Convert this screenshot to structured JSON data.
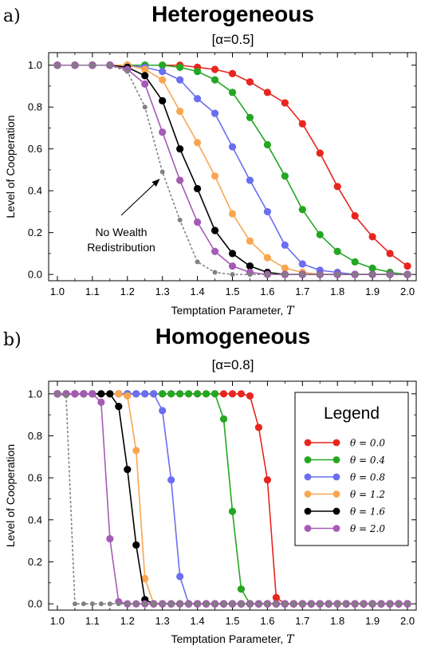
{
  "panels": [
    {
      "letter": "a)",
      "title": "Heterogeneous",
      "subtitle": "[α=0.5]"
    },
    {
      "letter": "b)",
      "title": "Homogeneous",
      "subtitle": "[α=0.8]"
    }
  ],
  "legend": {
    "title": "Legend",
    "items": [
      {
        "label": "θ = 0.0",
        "color": "#e8251e"
      },
      {
        "label": "θ = 0.4",
        "color": "#23a722"
      },
      {
        "label": "θ = 0.8",
        "color": "#6a6ef0"
      },
      {
        "label": "θ = 1.2",
        "color": "#f9a650"
      },
      {
        "label": "θ = 1.6",
        "color": "#000000"
      },
      {
        "label": "θ = 2.0",
        "color": "#a55bb4"
      }
    ]
  },
  "chart_data": [
    {
      "type": "line",
      "title": "Heterogeneous",
      "subtitle": "[α=0.5]",
      "xlabel_text": "Temptation Parameter, ",
      "xlabel_var": "T",
      "ylabel": "Level of Cooperation",
      "xlim": [
        0.975,
        2.025
      ],
      "ylim": [
        -0.03,
        1.06
      ],
      "xticks": [
        1.0,
        1.1,
        1.2,
        1.3,
        1.4,
        1.5,
        1.6,
        1.7,
        1.8,
        1.9,
        2.0
      ],
      "xtick_labels": [
        "1.0",
        "1.1",
        "1.2",
        "1.3",
        "1.4",
        "1.5",
        "1.6",
        "1.7",
        "1.8",
        "1.9",
        "2.0"
      ],
      "yticks": [
        0.0,
        0.2,
        0.4,
        0.6,
        0.8,
        1.0
      ],
      "ytick_labels": [
        "0.0",
        "0.2",
        "0.4",
        "0.6",
        "0.8",
        "1.0"
      ],
      "annotation": {
        "lines": [
          "No Wealth",
          "Redistribution"
        ],
        "arrow_to": [
          1.3,
          0.5
        ]
      },
      "x": [
        1.0,
        1.05,
        1.1,
        1.15,
        1.2,
        1.25,
        1.3,
        1.35,
        1.4,
        1.45,
        1.5,
        1.55,
        1.6,
        1.65,
        1.7,
        1.75,
        1.8,
        1.85,
        1.9,
        1.95,
        2.0
      ],
      "series": [
        {
          "color": "#e8251e",
          "dashed": false,
          "values": [
            1.0,
            1.0,
            1.0,
            1.0,
            1.0,
            1.0,
            1.0,
            1.0,
            0.99,
            0.98,
            0.96,
            0.92,
            0.87,
            0.82,
            0.72,
            0.58,
            0.42,
            0.28,
            0.18,
            0.1,
            0.04
          ]
        },
        {
          "color": "#23a722",
          "dashed": false,
          "values": [
            1.0,
            1.0,
            1.0,
            1.0,
            1.0,
            1.0,
            1.0,
            0.99,
            0.97,
            0.93,
            0.87,
            0.75,
            0.62,
            0.47,
            0.31,
            0.19,
            0.11,
            0.06,
            0.03,
            0.01,
            0.0
          ]
        },
        {
          "color": "#6a6ef0",
          "dashed": false,
          "values": [
            1.0,
            1.0,
            1.0,
            1.0,
            1.0,
            0.99,
            0.97,
            0.93,
            0.84,
            0.77,
            0.61,
            0.45,
            0.3,
            0.14,
            0.05,
            0.02,
            0.01,
            0.0,
            0.0,
            0.0,
            0.0
          ]
        },
        {
          "color": "#f9a650",
          "dashed": false,
          "values": [
            1.0,
            1.0,
            1.0,
            1.0,
            1.0,
            0.98,
            0.93,
            0.78,
            0.63,
            0.47,
            0.29,
            0.16,
            0.08,
            0.03,
            0.01,
            0.0,
            0.0,
            0.0,
            0.0,
            0.0,
            0.0
          ]
        },
        {
          "color": "#000000",
          "dashed": false,
          "values": [
            1.0,
            1.0,
            1.0,
            1.0,
            0.99,
            0.95,
            0.83,
            0.6,
            0.41,
            0.21,
            0.1,
            0.04,
            0.01,
            0.0,
            0.0,
            0.0,
            0.0,
            0.0,
            0.0,
            0.0,
            0.0
          ]
        },
        {
          "color": "#a55bb4",
          "dashed": false,
          "values": [
            1.0,
            1.0,
            1.0,
            1.0,
            0.98,
            0.91,
            0.68,
            0.45,
            0.25,
            0.11,
            0.04,
            0.01,
            0.0,
            0.0,
            0.0,
            0.0,
            0.0,
            0.0,
            0.0,
            0.0,
            0.0
          ]
        },
        {
          "color": "#808080",
          "dashed": true,
          "values": [
            1.0,
            1.0,
            1.0,
            1.0,
            0.97,
            0.8,
            0.49,
            0.26,
            0.06,
            0.01,
            0.0,
            0.0,
            0.0,
            0.0,
            0.0,
            0.0,
            0.0,
            0.0,
            0.0,
            0.0,
            0.0
          ]
        }
      ]
    },
    {
      "type": "line",
      "title": "Homogeneous",
      "subtitle": "[α=0.8]",
      "xlabel_text": "Temptation Parameter, ",
      "xlabel_var": "T",
      "ylabel": "Level of Cooperation",
      "xlim": [
        0.975,
        2.025
      ],
      "ylim": [
        -0.03,
        1.06
      ],
      "xticks": [
        1.0,
        1.1,
        1.2,
        1.3,
        1.4,
        1.5,
        1.6,
        1.7,
        1.8,
        1.9,
        2.0
      ],
      "xtick_labels": [
        "1.0",
        "1.1",
        "1.2",
        "1.3",
        "1.4",
        "1.5",
        "1.6",
        "1.7",
        "1.8",
        "1.9",
        "2.0"
      ],
      "yticks": [
        0.0,
        0.2,
        0.4,
        0.6,
        0.8,
        1.0
      ],
      "ytick_labels": [
        "0.0",
        "0.2",
        "0.4",
        "0.6",
        "0.8",
        "1.0"
      ],
      "x": [
        1.0,
        1.025,
        1.05,
        1.075,
        1.1,
        1.125,
        1.15,
        1.175,
        1.2,
        1.225,
        1.25,
        1.275,
        1.3,
        1.325,
        1.35,
        1.375,
        1.4,
        1.425,
        1.45,
        1.475,
        1.5,
        1.525,
        1.55,
        1.575,
        1.6,
        1.625,
        1.65,
        1.675,
        1.7,
        1.725,
        1.75,
        1.775,
        1.8,
        1.825,
        1.85,
        1.875,
        1.9,
        1.925,
        1.95,
        1.975,
        2.0
      ],
      "series": [
        {
          "color": "#e8251e",
          "dashed": false,
          "values": [
            1.0,
            1.0,
            1.0,
            1.0,
            1.0,
            1.0,
            1.0,
            1.0,
            1.0,
            1.0,
            1.0,
            1.0,
            1.0,
            1.0,
            1.0,
            1.0,
            1.0,
            1.0,
            1.0,
            1.0,
            1.0,
            1.0,
            0.99,
            0.84,
            0.59,
            0.03,
            0.0,
            0.0,
            0.0,
            0.0,
            0.0,
            0.0,
            0.0,
            0.0,
            0.0,
            0.0,
            0.0,
            0.0,
            0.0,
            0.0,
            0.0
          ]
        },
        {
          "color": "#23a722",
          "dashed": false,
          "values": [
            1.0,
            1.0,
            1.0,
            1.0,
            1.0,
            1.0,
            1.0,
            1.0,
            1.0,
            1.0,
            1.0,
            1.0,
            1.0,
            1.0,
            1.0,
            1.0,
            1.0,
            1.0,
            1.0,
            0.88,
            0.44,
            0.07,
            0.0,
            0.0,
            0.0,
            0.0,
            0.0,
            0.0,
            0.0,
            0.0,
            0.0,
            0.0,
            0.0,
            0.0,
            0.0,
            0.0,
            0.0,
            0.0,
            0.0,
            0.0,
            0.0
          ]
        },
        {
          "color": "#6a6ef0",
          "dashed": false,
          "values": [
            1.0,
            1.0,
            1.0,
            1.0,
            1.0,
            1.0,
            1.0,
            1.0,
            1.0,
            1.0,
            1.0,
            1.0,
            0.92,
            0.59,
            0.13,
            0.0,
            0.0,
            0.0,
            0.0,
            0.0,
            0.0,
            0.0,
            0.0,
            0.0,
            0.0,
            0.0,
            0.0,
            0.0,
            0.0,
            0.0,
            0.0,
            0.0,
            0.0,
            0.0,
            0.0,
            0.0,
            0.0,
            0.0,
            0.0,
            0.0,
            0.0
          ]
        },
        {
          "color": "#f9a650",
          "dashed": false,
          "values": [
            1.0,
            1.0,
            1.0,
            1.0,
            1.0,
            1.0,
            1.0,
            1.0,
            0.99,
            0.73,
            0.12,
            0.0,
            0.0,
            0.0,
            0.0,
            0.0,
            0.0,
            0.0,
            0.0,
            0.0,
            0.0,
            0.0,
            0.0,
            0.0,
            0.0,
            0.0,
            0.0,
            0.0,
            0.0,
            0.0,
            0.0,
            0.0,
            0.0,
            0.0,
            0.0,
            0.0,
            0.0,
            0.0,
            0.0,
            0.0,
            0.0
          ]
        },
        {
          "color": "#000000",
          "dashed": false,
          "values": [
            1.0,
            1.0,
            1.0,
            1.0,
            1.0,
            1.0,
            1.0,
            0.94,
            0.64,
            0.28,
            0.02,
            0.0,
            0.0,
            0.0,
            0.0,
            0.0,
            0.0,
            0.0,
            0.0,
            0.0,
            0.0,
            0.0,
            0.0,
            0.0,
            0.0,
            0.0,
            0.0,
            0.0,
            0.0,
            0.0,
            0.0,
            0.0,
            0.0,
            0.0,
            0.0,
            0.0,
            0.0,
            0.0,
            0.0,
            0.0,
            0.0
          ]
        },
        {
          "color": "#a55bb4",
          "dashed": false,
          "values": [
            1.0,
            1.0,
            1.0,
            1.0,
            1.0,
            0.96,
            0.31,
            0.01,
            0.0,
            0.0,
            0.0,
            0.0,
            0.0,
            0.0,
            0.0,
            0.0,
            0.0,
            0.0,
            0.0,
            0.0,
            0.0,
            0.0,
            0.0,
            0.0,
            0.0,
            0.0,
            0.0,
            0.0,
            0.0,
            0.0,
            0.0,
            0.0,
            0.0,
            0.0,
            0.0,
            0.0,
            0.0,
            0.0,
            0.0,
            0.0,
            0.0
          ]
        },
        {
          "color": "#808080",
          "dashed": true,
          "values": [
            1.0,
            0.99,
            0.0,
            0.0,
            0.0,
            0.0,
            0.0,
            0.0,
            0.0,
            0.0,
            0.0,
            0.0,
            0.0,
            0.0,
            0.0,
            0.0,
            0.0,
            0.0,
            0.0,
            0.0,
            0.0,
            0.0,
            0.0,
            0.0,
            0.0,
            0.0,
            0.0,
            0.0,
            0.0,
            0.0,
            0.0,
            0.0,
            0.0,
            0.0,
            0.0,
            0.0,
            0.0,
            0.0,
            0.0,
            0.0,
            0.0
          ]
        }
      ]
    }
  ]
}
